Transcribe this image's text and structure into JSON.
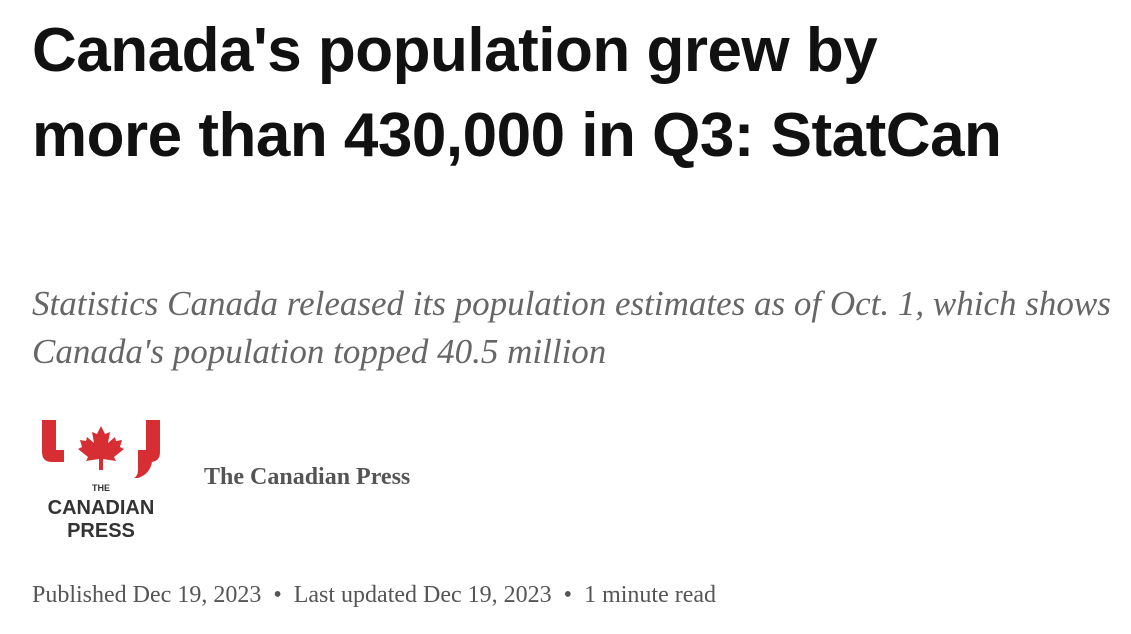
{
  "header": {
    "title": "Canada's population grew by more than 430,000 in Q3: StatCan",
    "subtitle": "Statistics Canada released its population estimates as of Oct. 1, which shows Canada's population topped 40.5 million"
  },
  "byline": {
    "logo": {
      "line1": "THE",
      "line2": "CANADIAN",
      "line3": "PRESS"
    },
    "author": "The Canadian Press"
  },
  "meta": {
    "published": "Published Dec 19, 2023",
    "updated": "Last updated Dec 19, 2023",
    "read_time": "1 minute read"
  }
}
